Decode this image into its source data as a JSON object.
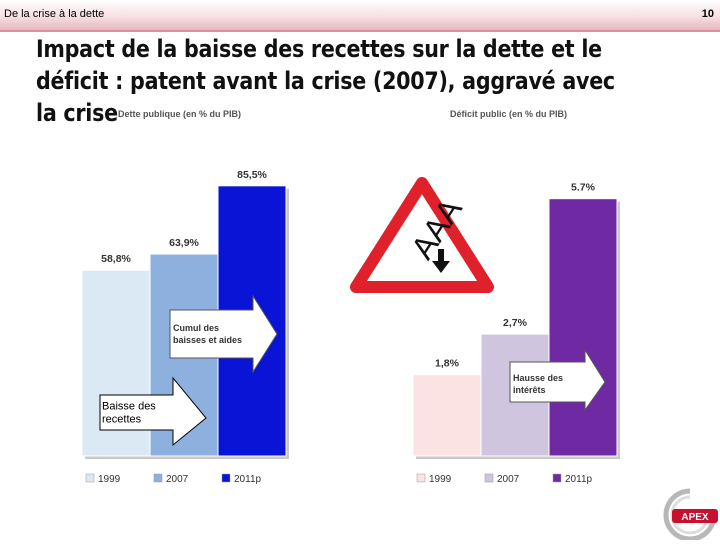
{
  "header": {
    "section": "De la crise à la dette",
    "page_number": "10"
  },
  "title": "Impact de la baisse des recettes sur la dette et le déficit : patent avant la crise (2007), aggravé avec la crise",
  "chart_data": [
    {
      "type": "bar",
      "title": "Dette publique (en % du PIB)",
      "categories": [
        "1999",
        "2007",
        "2011p"
      ],
      "values": [
        58.8,
        63.9,
        85.5
      ],
      "data_labels": [
        "58,8%",
        "63,9%",
        "85,5%"
      ],
      "colors": [
        "#dbe9f5",
        "#8eb0df",
        "#0a14d6"
      ],
      "ylim": [
        0,
        100
      ],
      "annotations": [
        "Cumul des baisses et aides",
        "Baisse des recettes"
      ],
      "legend": "bottom"
    },
    {
      "type": "bar",
      "title": "Déficit public (en % du PIB)",
      "categories": [
        "1999",
        "2007",
        "2011p"
      ],
      "values": [
        1.8,
        2.7,
        5.7
      ],
      "data_labels": [
        "1,8%",
        "2,7%",
        "5.7%"
      ],
      "colors": [
        "#fbe3e3",
        "#cfc5de",
        "#6f2aa3"
      ],
      "ylim": [
        0,
        7
      ],
      "annotations": [
        "Hausse des intérêts"
      ],
      "legend": "bottom"
    }
  ],
  "warning_sign": {
    "text": "AAA",
    "icon": "down-arrow-icon"
  },
  "logo": {
    "text": "APEX"
  }
}
